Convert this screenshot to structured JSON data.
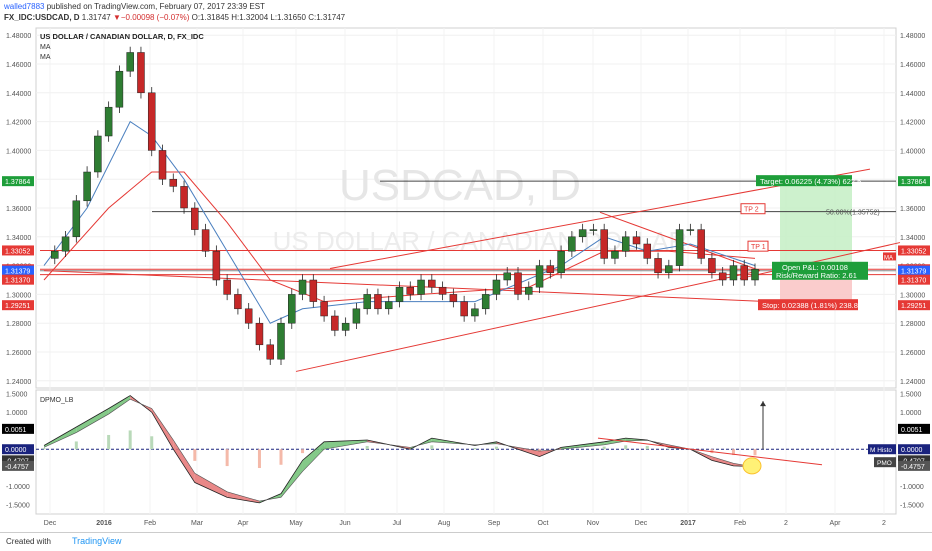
{
  "header": {
    "user": "walled7883",
    "published": "published on TradingView.com, February 07, 2017 23:39 EST",
    "symbol": "FX_IDC:USDCAD, D",
    "last": "1.31747",
    "change": "▼−0.00098 (−0.07%)",
    "o": "O:1.31845",
    "h": "H:1.32004",
    "l": "L:1.31650",
    "c": "C:1.31747"
  },
  "footer": {
    "created": "Created with",
    "brand": "TradingView"
  },
  "chart_data": {
    "type": "candlestick",
    "title": "US DOLLAR / CANADIAN DOLLAR, D, FX_IDC",
    "indicators": [
      "MA",
      "MA"
    ],
    "watermark": "USDCAD, D",
    "watermark_sub": "US DOLLAR / CANADIAN DOLLAR",
    "ylim": [
      1.235,
      1.485
    ],
    "y_ticks": [
      "1.48000",
      "1.46000",
      "1.44000",
      "1.42000",
      "1.40000",
      "1.38000",
      "1.36000",
      "1.34000",
      "1.32000",
      "1.30000",
      "1.28000",
      "1.26000",
      "1.24000"
    ],
    "x_ticks": [
      "Dec",
      "2016",
      "Feb",
      "Mar",
      "Apr",
      "May",
      "Jun",
      "Jul",
      "Aug",
      "Sep",
      "Oct",
      "Nov",
      "Dec",
      "2017",
      "Feb",
      "2",
      "Apr",
      "2"
    ],
    "close_path": [
      [
        0,
        1.325
      ],
      [
        1,
        1.33
      ],
      [
        2,
        1.34
      ],
      [
        3,
        1.365
      ],
      [
        4,
        1.385
      ],
      [
        5,
        1.41
      ],
      [
        6,
        1.43
      ],
      [
        7,
        1.455
      ],
      [
        8,
        1.468
      ],
      [
        9,
        1.44
      ],
      [
        10,
        1.4
      ],
      [
        11,
        1.38
      ],
      [
        12,
        1.375
      ],
      [
        13,
        1.36
      ],
      [
        14,
        1.345
      ],
      [
        15,
        1.33
      ],
      [
        16,
        1.31
      ],
      [
        17,
        1.3
      ],
      [
        18,
        1.29
      ],
      [
        19,
        1.28
      ],
      [
        20,
        1.265
      ],
      [
        21,
        1.255
      ],
      [
        22,
        1.28
      ],
      [
        23,
        1.3
      ],
      [
        24,
        1.31
      ],
      [
        25,
        1.295
      ],
      [
        26,
        1.285
      ],
      [
        27,
        1.275
      ],
      [
        28,
        1.28
      ],
      [
        29,
        1.29
      ],
      [
        30,
        1.3
      ],
      [
        31,
        1.29
      ],
      [
        32,
        1.295
      ],
      [
        33,
        1.305
      ],
      [
        34,
        1.3
      ],
      [
        35,
        1.31
      ],
      [
        36,
        1.305
      ],
      [
        37,
        1.3
      ],
      [
        38,
        1.295
      ],
      [
        39,
        1.285
      ],
      [
        40,
        1.29
      ],
      [
        41,
        1.3
      ],
      [
        42,
        1.31
      ],
      [
        43,
        1.315
      ],
      [
        44,
        1.3
      ],
      [
        45,
        1.305
      ],
      [
        46,
        1.32
      ],
      [
        47,
        1.315
      ],
      [
        48,
        1.33
      ],
      [
        49,
        1.34
      ],
      [
        50,
        1.345
      ],
      [
        51,
        1.345
      ],
      [
        52,
        1.325
      ],
      [
        53,
        1.33
      ],
      [
        54,
        1.34
      ],
      [
        55,
        1.335
      ],
      [
        56,
        1.325
      ],
      [
        57,
        1.315
      ],
      [
        58,
        1.32
      ],
      [
        59,
        1.345
      ],
      [
        60,
        1.345
      ],
      [
        61,
        1.325
      ],
      [
        62,
        1.315
      ],
      [
        63,
        1.31
      ],
      [
        64,
        1.32
      ],
      [
        65,
        1.31
      ],
      [
        66,
        1.3175
      ]
    ],
    "ma_fast": [
      [
        0,
        1.32
      ],
      [
        4,
        1.36
      ],
      [
        8,
        1.42
      ],
      [
        10,
        1.41
      ],
      [
        13,
        1.38
      ],
      [
        17,
        1.33
      ],
      [
        21,
        1.28
      ],
      [
        24,
        1.29
      ],
      [
        30,
        1.295
      ],
      [
        40,
        1.295
      ],
      [
        48,
        1.32
      ],
      [
        52,
        1.34
      ],
      [
        56,
        1.33
      ],
      [
        60,
        1.335
      ],
      [
        64,
        1.325
      ],
      [
        66,
        1.32
      ]
    ],
    "ma_slow": [
      [
        0,
        1.31
      ],
      [
        6,
        1.36
      ],
      [
        10,
        1.385
      ],
      [
        13,
        1.385
      ],
      [
        17,
        1.35
      ],
      [
        21,
        1.31
      ],
      [
        26,
        1.295
      ],
      [
        35,
        1.3
      ],
      [
        45,
        1.305
      ],
      [
        52,
        1.33
      ],
      [
        58,
        1.33
      ],
      [
        66,
        1.325
      ]
    ],
    "price_labels": [
      {
        "value": "1.37864",
        "color": "#1e9e3a"
      },
      {
        "value": "1.33052",
        "color": "#e53935"
      },
      {
        "value": "1.31747",
        "color": "#e53935"
      },
      {
        "value": "1.31639",
        "color": "#607d8b"
      },
      {
        "value": "1.31379",
        "color": "#2962ff"
      },
      {
        "value": "1.31370",
        "color": "#e53935"
      },
      {
        "value": "1.29251",
        "color": "#e53935"
      }
    ],
    "annotations": {
      "target": "Target: 0.06225 (4.73%) 622.5",
      "stop": "Stop: 0.02388 (1.81%) 238.8",
      "open_pl": "Open P&L: 0.00108",
      "risk_reward": "Risk/Reward Ratio: 2.61",
      "tp1": "TP 1",
      "tp2": "TP 2",
      "fib": "50.00%(1.35752)",
      "ma_tag": "MA",
      "target_level": 1.37864,
      "entry_level": 1.3164,
      "stop_level": 1.2925,
      "fib_level": 1.35752,
      "tp1_level": 1.33052
    },
    "colors": {
      "up": "#2e7d32",
      "down": "#c62828",
      "trend": "#e53935",
      "ma_fast": "#4a7fbf",
      "ma_slow": "#e53935",
      "profit": "#c8efc8",
      "loss": "#f9c6c6"
    },
    "oscillator": {
      "name": "DPMO_LB",
      "ylim": [
        -1.75,
        1.6
      ],
      "y_ticks": [
        "1.5000",
        "1.0000",
        "0.5000",
        "0.0000",
        "-0.5000",
        "-1.0000",
        "-1.5000"
      ],
      "levels": [
        {
          "value": "0.0051",
          "color": "#000000"
        },
        {
          "value": "0.0000",
          "color": "#1a237e"
        },
        {
          "value": "-0.4707",
          "color": "#333333"
        },
        {
          "value": "-0.4757",
          "color": "#555555"
        }
      ],
      "legend_histo": "M Histo",
      "legend_pmo": "PMO",
      "pmo": [
        [
          0,
          0.1
        ],
        [
          3,
          0.6
        ],
        [
          6,
          1.1
        ],
        [
          8,
          1.45
        ],
        [
          10,
          1.0
        ],
        [
          12,
          0.0
        ],
        [
          14,
          -0.9
        ],
        [
          17,
          -1.3
        ],
        [
          20,
          -1.45
        ],
        [
          22,
          -1.2
        ],
        [
          24,
          -0.3
        ],
        [
          26,
          0.2
        ],
        [
          30,
          0.25
        ],
        [
          34,
          0.0
        ],
        [
          36,
          0.3
        ],
        [
          40,
          0.1
        ],
        [
          42,
          0.2
        ],
        [
          46,
          -0.2
        ],
        [
          48,
          0.05
        ],
        [
          52,
          0.2
        ],
        [
          54,
          0.3
        ],
        [
          56,
          0.25
        ],
        [
          58,
          0.05
        ],
        [
          60,
          0.0
        ],
        [
          62,
          -0.3
        ],
        [
          64,
          -0.45
        ],
        [
          66,
          -0.47
        ]
      ],
      "signal": [
        [
          0,
          0.05
        ],
        [
          3,
          0.45
        ],
        [
          6,
          0.95
        ],
        [
          8,
          1.35
        ],
        [
          10,
          1.1
        ],
        [
          12,
          0.25
        ],
        [
          14,
          -0.65
        ],
        [
          17,
          -1.15
        ],
        [
          20,
          -1.4
        ],
        [
          22,
          -1.3
        ],
        [
          24,
          -0.6
        ],
        [
          26,
          0.0
        ],
        [
          30,
          0.2
        ],
        [
          34,
          0.05
        ],
        [
          36,
          0.2
        ],
        [
          40,
          0.12
        ],
        [
          42,
          0.15
        ],
        [
          46,
          -0.05
        ],
        [
          48,
          0.0
        ],
        [
          52,
          0.12
        ],
        [
          54,
          0.22
        ],
        [
          56,
          0.24
        ],
        [
          58,
          0.12
        ],
        [
          60,
          0.0
        ],
        [
          62,
          -0.2
        ],
        [
          64,
          -0.38
        ],
        [
          66,
          -0.48
        ]
      ]
    }
  }
}
